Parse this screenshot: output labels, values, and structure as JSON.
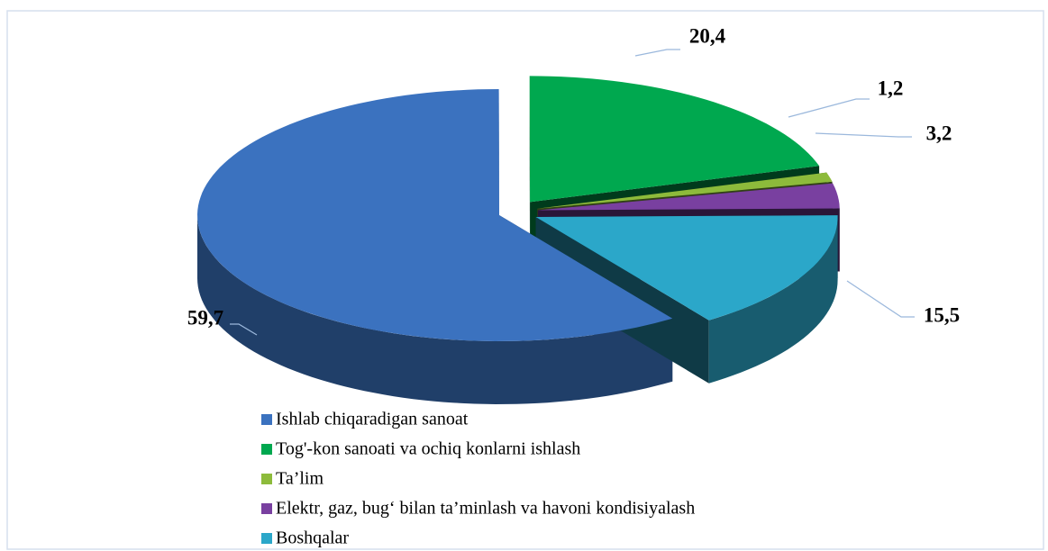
{
  "chart_data": {
    "type": "pie",
    "categories": [
      "Ishlab chiqaradigan sanoat",
      "Tog'-kon sanoati va ochiq konlarni ishlash",
      "Ta’lim",
      "Elektr,  gaz, bug‘ bilan ta’minlash va havoni  kondisiyalash",
      "Boshqalar"
    ],
    "values": [
      59.7,
      20.4,
      1.2,
      3.2,
      15.5
    ],
    "value_labels": [
      "59,7",
      "20,4",
      "1,2",
      "3,2",
      "15,5"
    ],
    "colors": [
      "#3b72bf",
      "#00a84f",
      "#8dbb3b",
      "#7940a0",
      "#2ba7c9"
    ],
    "legend": "bottom"
  }
}
